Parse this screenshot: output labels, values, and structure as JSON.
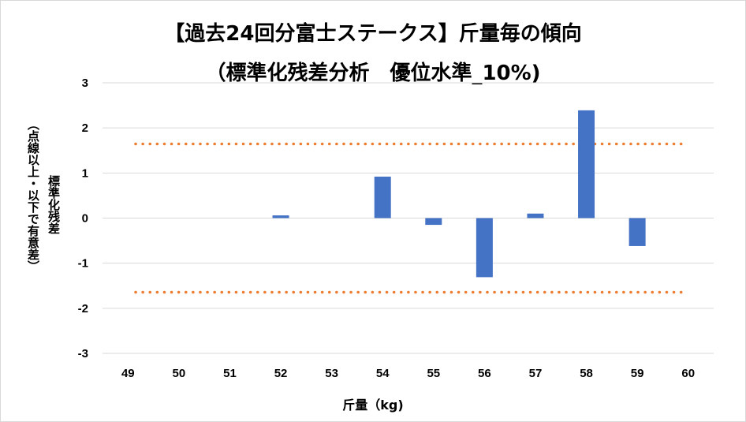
{
  "chart_data": {
    "type": "bar",
    "title": "【過去24回分富士ステークス】斤量毎の傾向",
    "subtitle": "（標準化残差分析　優位水準_10%)",
    "xlabel": "斤量（kg)",
    "ylabel": "標準化残差",
    "ylabel_note": "（点線以上・以下で有意差）",
    "categories": [
      "49",
      "50",
      "51",
      "52",
      "53",
      "54",
      "55",
      "56",
      "57",
      "58",
      "59",
      "60"
    ],
    "values": [
      0,
      0,
      0,
      0.06,
      0,
      0.92,
      -0.15,
      -1.31,
      0.1,
      2.39,
      -0.62,
      0
    ],
    "ylim": [
      -3,
      3
    ],
    "yticks": [
      3,
      2,
      1,
      0,
      -1,
      -2,
      -3
    ],
    "threshold_lines": [
      1.645,
      -1.645
    ],
    "bar_color": "#4472c4",
    "threshold_color": "#ed7d31",
    "grid_color": "#d9d9d9",
    "grid": true,
    "legend": "none"
  }
}
